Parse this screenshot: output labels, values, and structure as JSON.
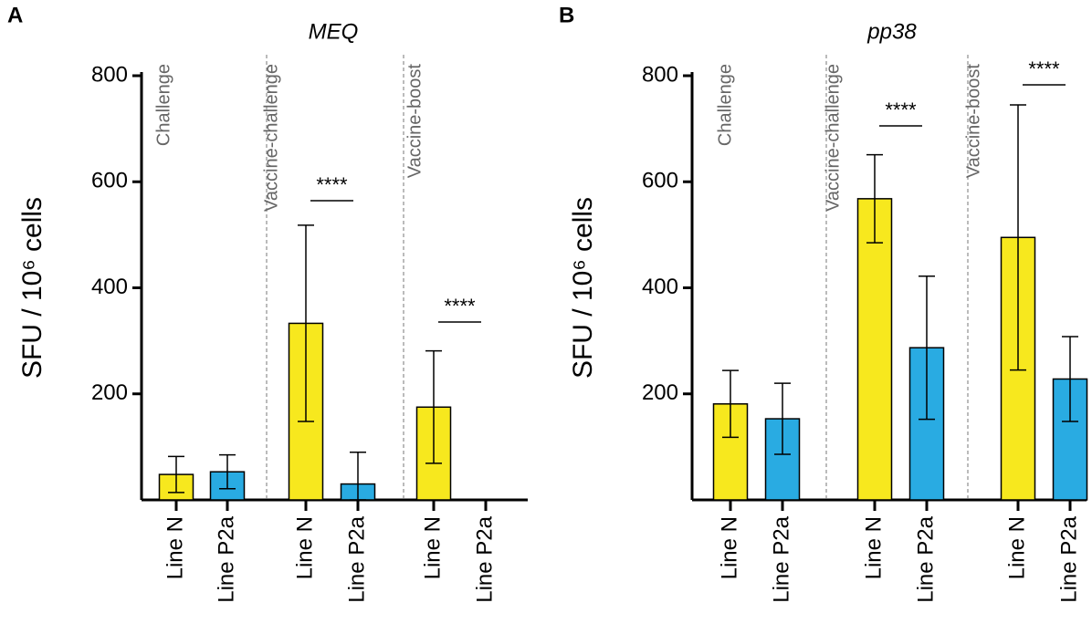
{
  "chart_data": [
    {
      "type": "bar",
      "panel": "A",
      "title": "MEQ",
      "ylabel": "SFU / 10⁶ cells",
      "groups": [
        "Challenge",
        "Vaccine-challenge",
        "Vaccine-boost"
      ],
      "categories": [
        "Line N",
        "Line P2a",
        "Line N",
        "Line P2a",
        "Line N",
        "Line P2a"
      ],
      "values": [
        48,
        53,
        333,
        30,
        175,
        0
      ],
      "errors": [
        34,
        32,
        185,
        60,
        106,
        0
      ],
      "colors": [
        "#f7e81e",
        "#29abe2",
        "#f7e81e",
        "#29abe2",
        "#f7e81e",
        "#29abe2"
      ],
      "ylim": [
        0,
        800
      ],
      "yticks": [
        200,
        400,
        600,
        800
      ],
      "annotations": [
        "****",
        "****"
      ]
    },
    {
      "type": "bar",
      "panel": "B",
      "title": "pp38",
      "ylabel": "SFU / 10⁶ cells",
      "groups": [
        "Challenge",
        "Vaccine-challenge",
        "Vaccine-boost"
      ],
      "categories": [
        "Line N",
        "Line P2a",
        "Line N",
        "Line P2a",
        "Line N",
        "Line P2a"
      ],
      "values": [
        181,
        153,
        568,
        287,
        495,
        228
      ],
      "errors": [
        63,
        67,
        83,
        135,
        250,
        80
      ],
      "colors": [
        "#f7e81e",
        "#29abe2",
        "#f7e81e",
        "#29abe2",
        "#f7e81e",
        "#29abe2"
      ],
      "ylim": [
        0,
        800
      ],
      "yticks": [
        200,
        400,
        600,
        800
      ],
      "annotations": [
        "****",
        "****"
      ]
    }
  ]
}
